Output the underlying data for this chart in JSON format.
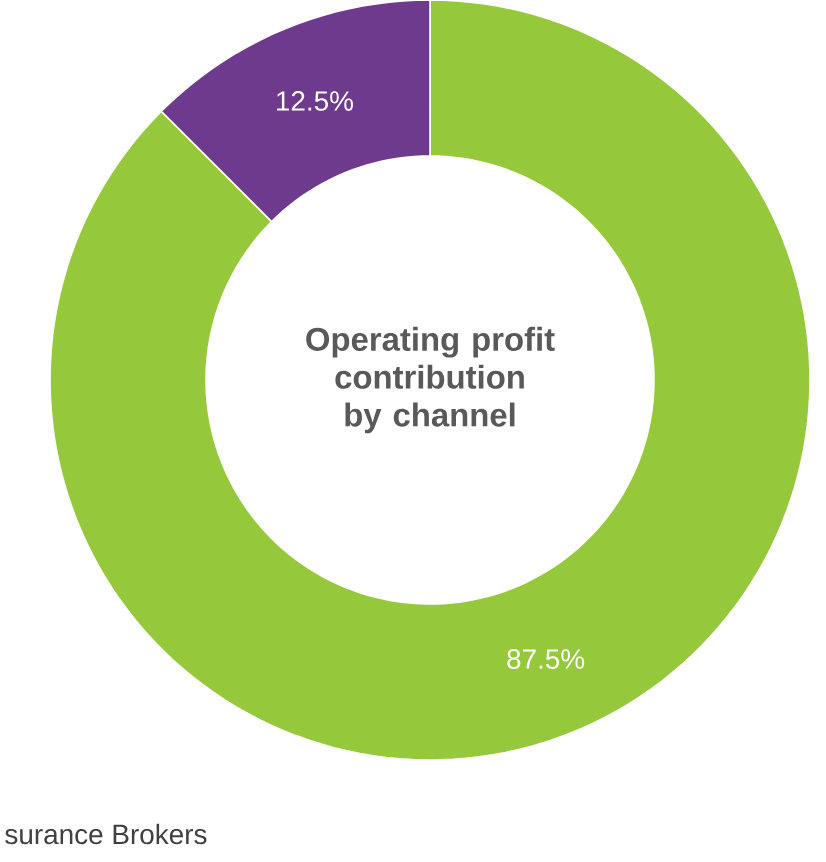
{
  "chart_data": {
    "type": "donut",
    "title": "Operating profit contribution by channel",
    "categories": [
      null,
      null
    ],
    "values": [
      87.5,
      12.5
    ],
    "colors": [
      "#96c83c",
      "#6e3a8e"
    ],
    "value_labels": [
      "87.5%",
      "12.5%"
    ],
    "annotations": [
      "surance Brokers"
    ]
  }
}
